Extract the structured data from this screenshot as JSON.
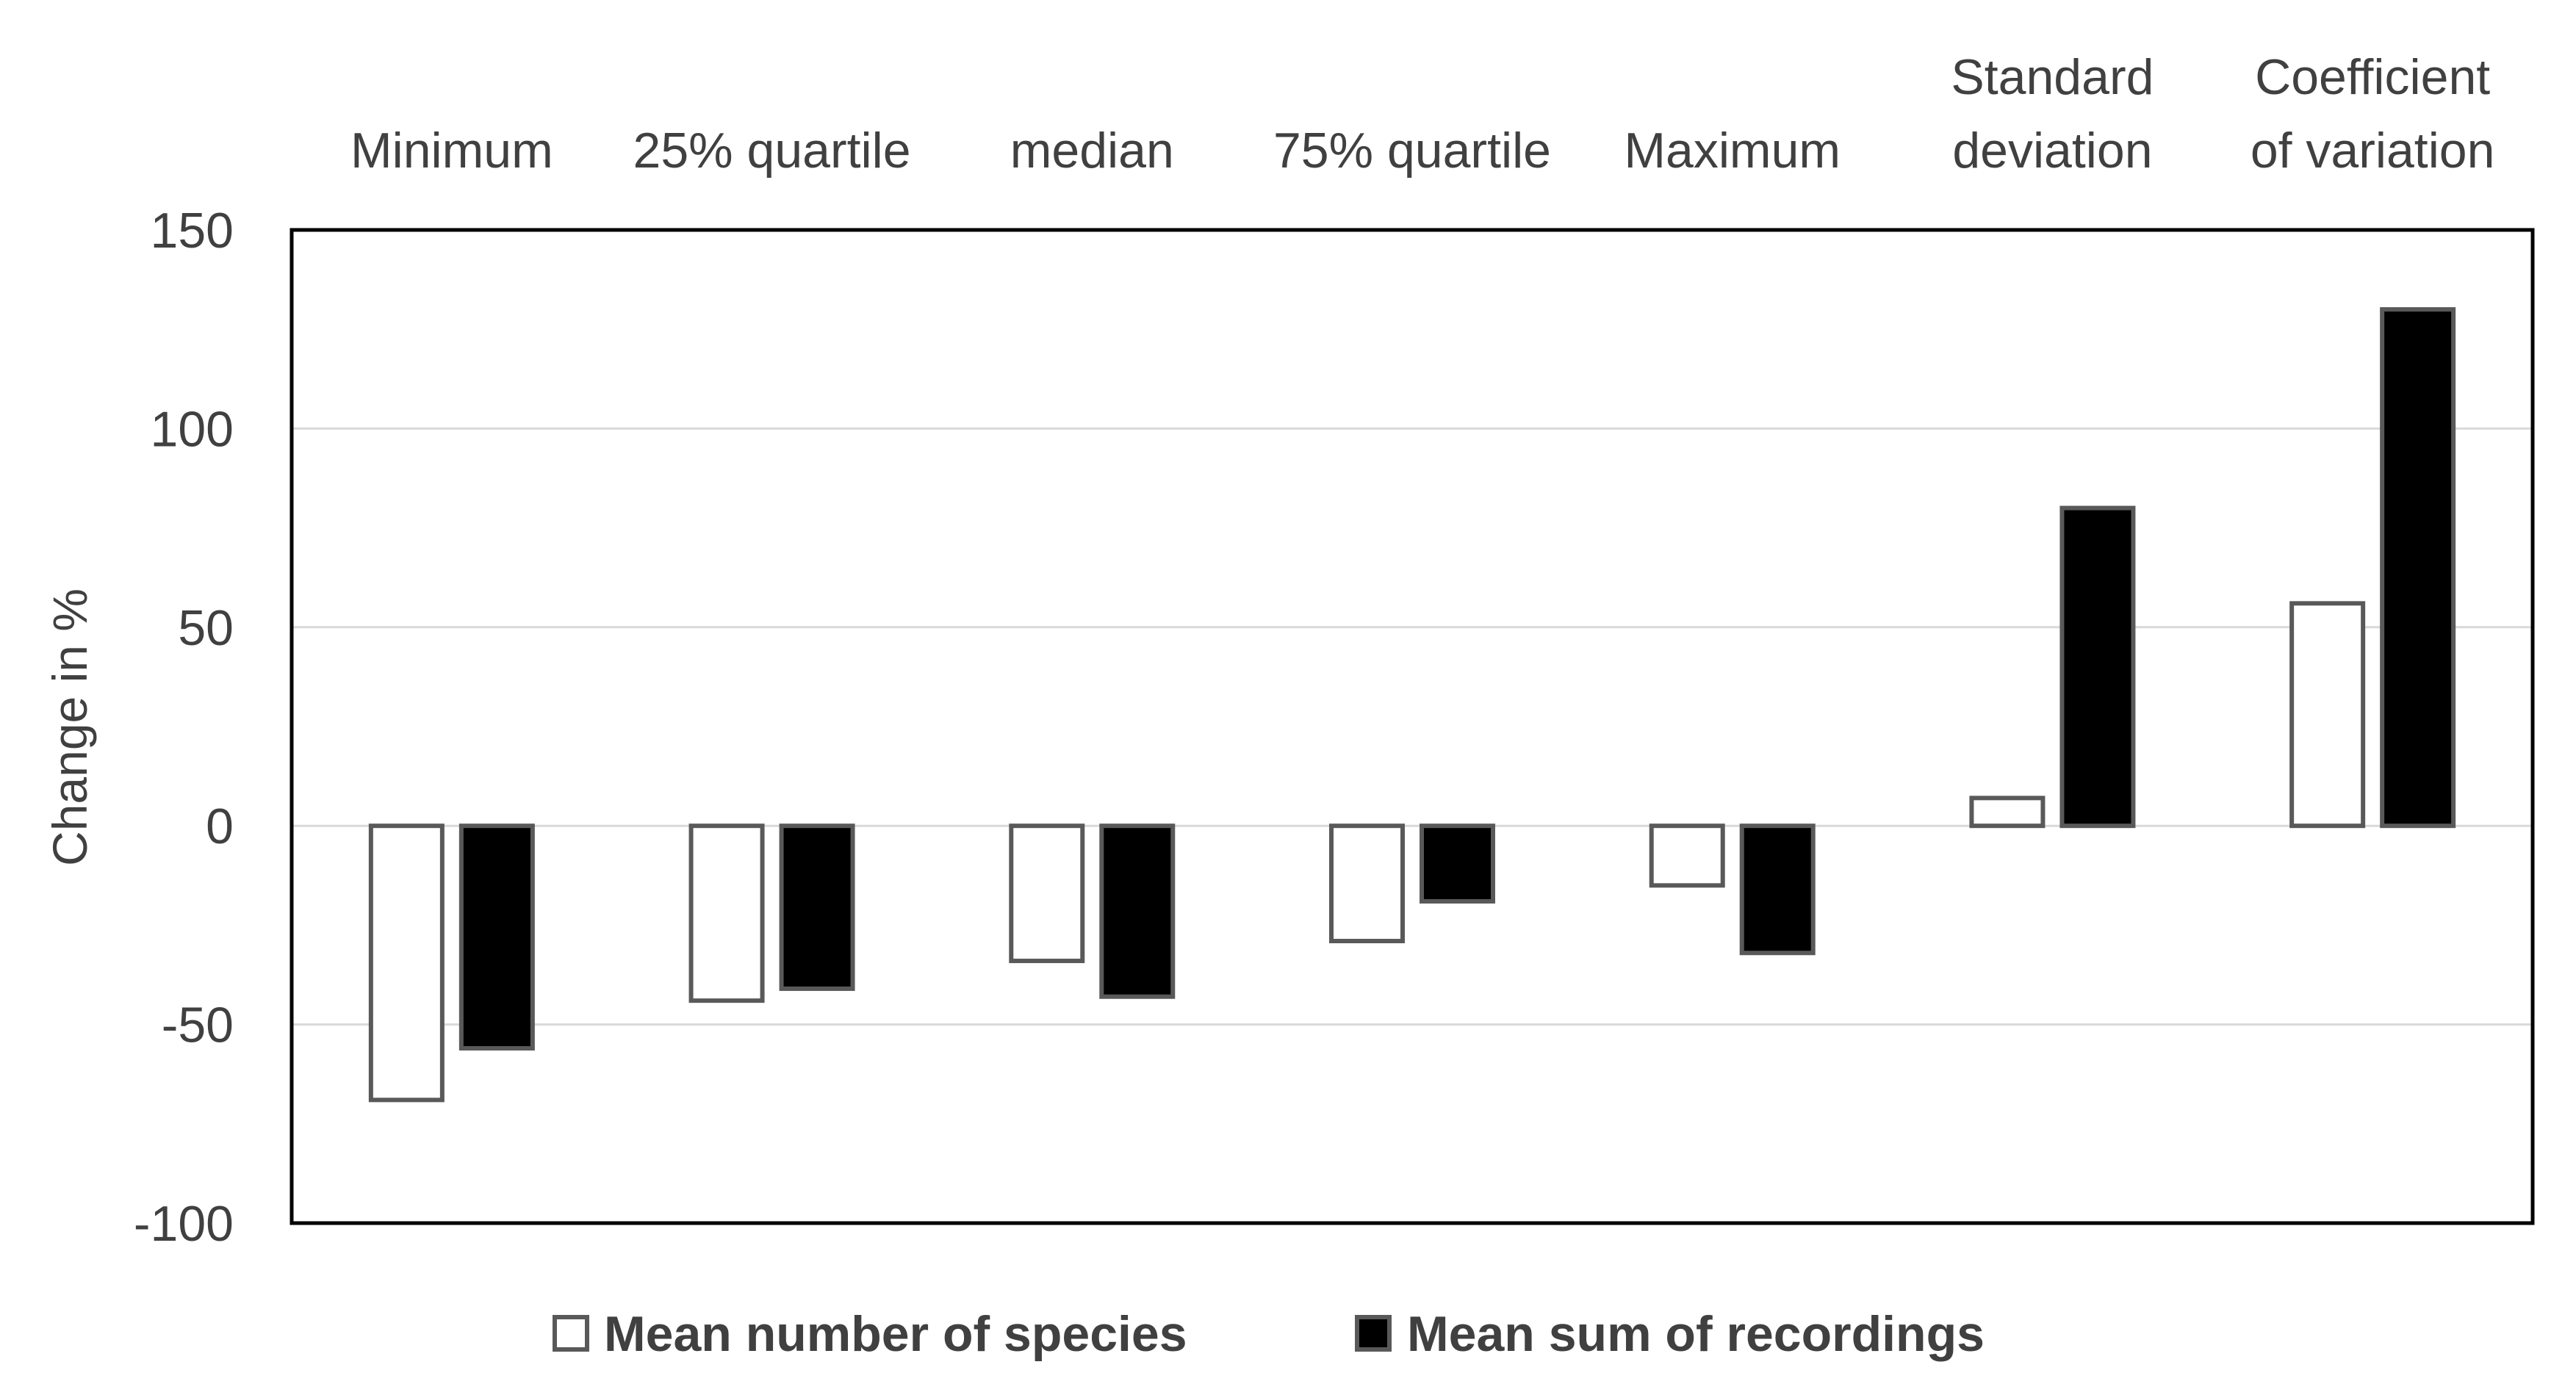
{
  "chart_data": {
    "type": "bar",
    "title": "",
    "xlabel": "",
    "ylabel": "Change in %",
    "ylim": [
      -100,
      150
    ],
    "yticks": [
      -100,
      -50,
      0,
      50,
      100,
      150
    ],
    "yticks_labels": [
      "-100",
      "-50",
      "0",
      "50",
      "100",
      "150"
    ],
    "grid": true,
    "category_axis_position": "top",
    "categories": [
      [
        "Minimum"
      ],
      [
        "25% quartile"
      ],
      [
        "median"
      ],
      [
        "75% quartile"
      ],
      [
        "Maximum"
      ],
      [
        "Standard",
        "deviation"
      ],
      [
        "Coefficient",
        "of variation"
      ]
    ],
    "series": [
      {
        "name": "Mean number of species",
        "fill": "#ffffff",
        "stroke": "#595959",
        "values": [
          -69,
          -44,
          -34,
          -29,
          -15,
          7,
          56
        ]
      },
      {
        "name": "Mean sum of recordings",
        "fill": "#000000",
        "stroke": "#595959",
        "values": [
          -56,
          -41,
          -43,
          -19,
          -32,
          80,
          130
        ]
      }
    ],
    "legend_position": "bottom"
  },
  "colors": {
    "axis_text": "#404040",
    "plot_border": "#000000",
    "gridline": "#d9d9d9"
  }
}
